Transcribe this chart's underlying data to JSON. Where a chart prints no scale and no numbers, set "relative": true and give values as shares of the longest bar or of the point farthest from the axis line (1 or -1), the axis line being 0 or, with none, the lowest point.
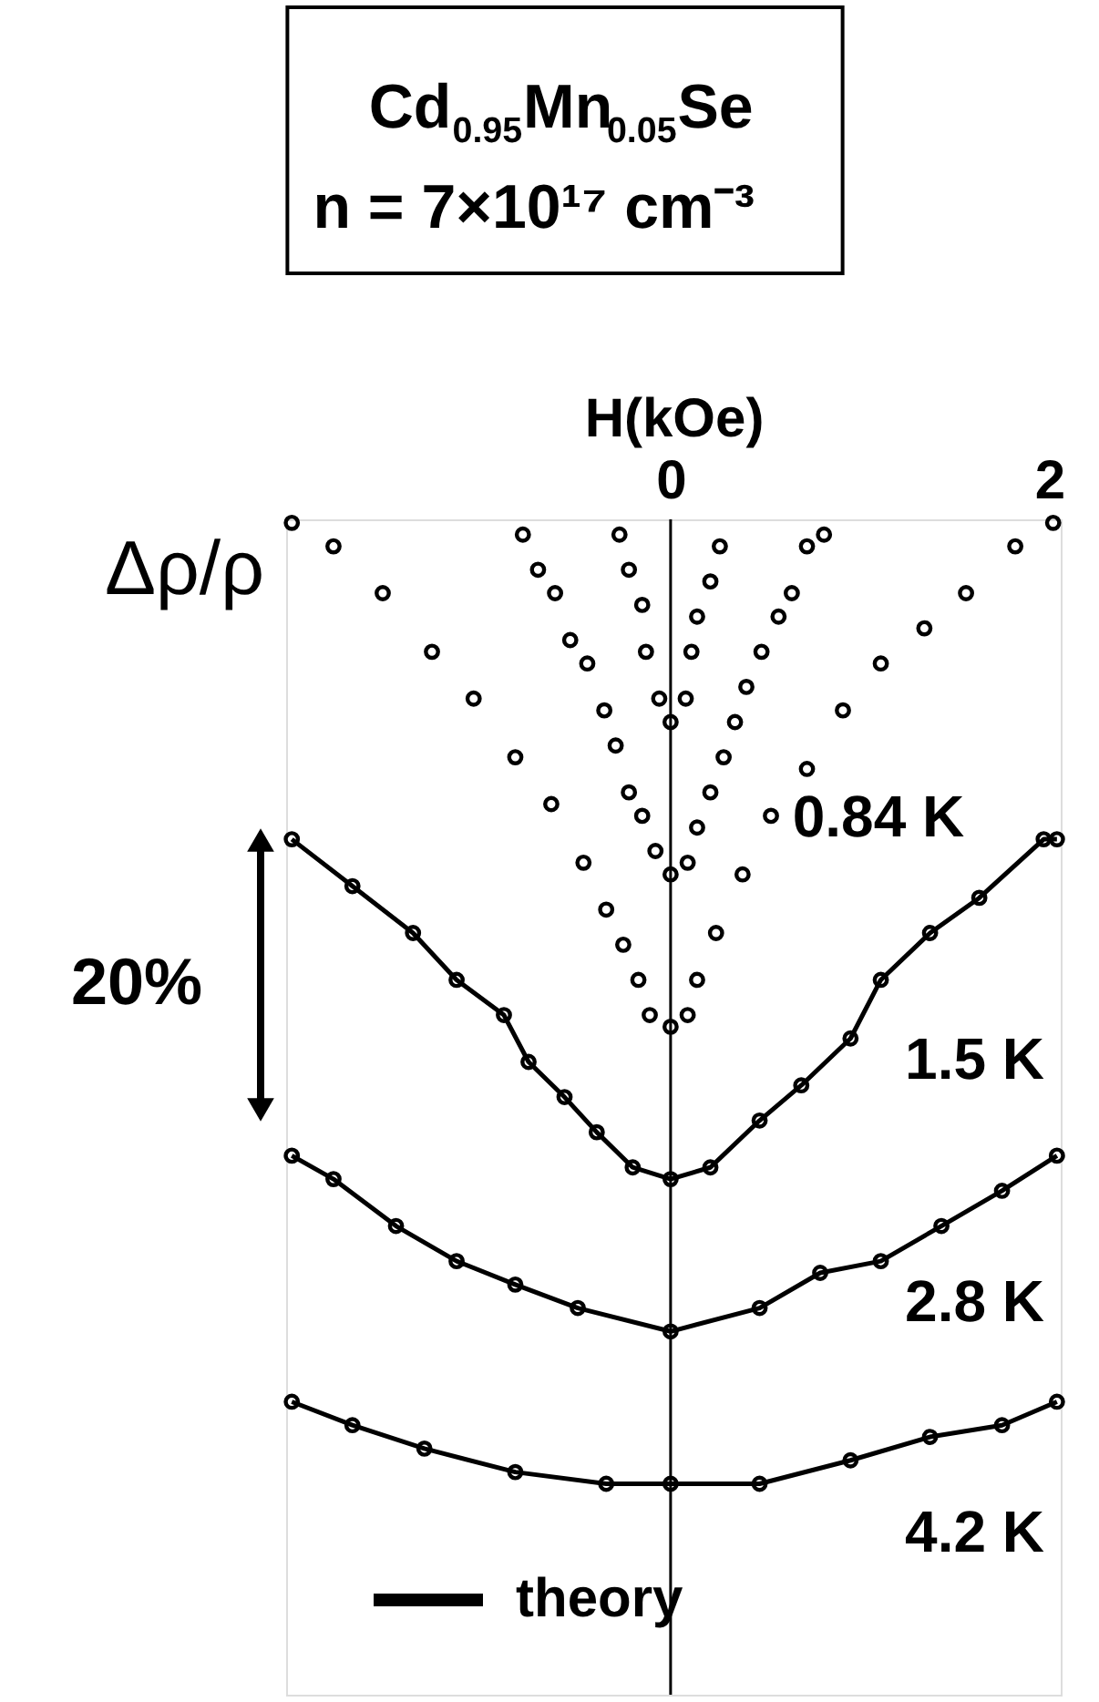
{
  "chart_data": {
    "type": "line",
    "title": "Cd$_{0.95}$Mn$_{0.05}$Se",
    "subtitle": "n = 7×10¹⁷ cm⁻³",
    "xlabel": "H(kOe)",
    "ylabel": "Δρ/ρ",
    "relative": true,
    "xlim": [
      -2.03,
      2.06
    ],
    "xticks": [
      0,
      2
    ],
    "grid": false,
    "legend": "bottom left",
    "marker": "circle",
    "annotations": [
      "20%"
    ],
    "ref_lines": [
      {
        "axis": "x",
        "value": 0,
        "color": "#000000"
      }
    ],
    "series": [
      {
        "type": "scatter",
        "color": "#000000",
        "x": [
          -0.27,
          -0.22,
          -0.15,
          -0.13,
          -0.06,
          0,
          0.08,
          0.11,
          0.14,
          0.21,
          0.26
        ],
        "values": [
          0.99,
          0.96,
          0.93,
          0.89,
          0.85,
          0.83,
          0.85,
          0.89,
          0.92,
          0.95,
          0.98
        ]
      },
      {
        "type": "scatter",
        "color": "#000000",
        "x": [
          -0.78,
          -0.7,
          -0.61,
          -0.53,
          -0.44,
          -0.35,
          -0.29,
          -0.22,
          -0.15,
          -0.08,
          0,
          0.09,
          0.14,
          0.21,
          0.28,
          0.34,
          0.4,
          0.48,
          0.57,
          0.64,
          0.72,
          0.81
        ],
        "values": [
          0.99,
          0.96,
          0.94,
          0.9,
          0.88,
          0.84,
          0.81,
          0.77,
          0.75,
          0.72,
          0.7,
          0.71,
          0.74,
          0.77,
          0.8,
          0.83,
          0.86,
          0.89,
          0.92,
          0.94,
          0.98,
          0.99
        ]
      },
      {
        "type": "scatter",
        "name": "0.84 K",
        "color": "#000000",
        "x": [
          -2.0,
          -1.78,
          -1.52,
          -1.26,
          -1.04,
          -0.82,
          -0.63,
          -0.46,
          -0.34,
          -0.25,
          -0.17,
          -0.11,
          0,
          0.09,
          0.14,
          0.24,
          0.38,
          0.53,
          0.72,
          0.91,
          1.11,
          1.34,
          1.56,
          1.82,
          2.02
        ],
        "values": [
          1.0,
          0.98,
          0.94,
          0.89,
          0.85,
          0.8,
          0.76,
          0.71,
          0.67,
          0.64,
          0.61,
          0.58,
          0.57,
          0.58,
          0.61,
          0.65,
          0.7,
          0.75,
          0.79,
          0.84,
          0.88,
          0.91,
          0.94,
          0.98,
          1.0
        ]
      },
      {
        "type": "scatter",
        "name": "1.5 K",
        "color": "#000000",
        "x": [
          -2.0,
          -1.68,
          -1.36,
          -1.13,
          -0.88,
          -0.75,
          -0.56,
          -0.39,
          -0.2,
          0,
          0.21,
          0.47,
          0.69,
          0.95,
          1.11,
          1.37,
          1.63,
          1.97,
          2.04
        ],
        "values": [
          0.73,
          0.69,
          0.65,
          0.61,
          0.58,
          0.54,
          0.51,
          0.48,
          0.45,
          0.44,
          0.45,
          0.49,
          0.52,
          0.56,
          0.61,
          0.65,
          0.68,
          0.73,
          0.73
        ]
      },
      {
        "type": "scatter",
        "name": "2.8 K",
        "color": "#000000",
        "x": [
          -2.0,
          -1.78,
          -1.45,
          -1.13,
          -0.82,
          -0.49,
          0,
          0.47,
          0.79,
          1.11,
          1.43,
          1.75,
          2.04
        ],
        "values": [
          0.46,
          0.44,
          0.4,
          0.37,
          0.35,
          0.33,
          0.31,
          0.33,
          0.36,
          0.37,
          0.4,
          0.43,
          0.46
        ]
      },
      {
        "type": "scatter",
        "name": "4.2 K",
        "color": "#000000",
        "x": [
          -2.0,
          -1.68,
          -1.3,
          -0.82,
          -0.34,
          0,
          0.47,
          0.95,
          1.37,
          1.75,
          2.04
        ],
        "values": [
          0.25,
          0.23,
          0.21,
          0.19,
          0.18,
          0.18,
          0.18,
          0.2,
          0.22,
          0.23,
          0.25
        ]
      },
      {
        "name": "theory",
        "color": "#000000",
        "line_style": "solid",
        "marker": "none",
        "x": [
          -2.0,
          -1.68,
          -1.36,
          -1.13,
          -0.88,
          -0.75,
          -0.56,
          -0.39,
          -0.2,
          0,
          0.21,
          0.47,
          0.69,
          0.95,
          1.11,
          1.37,
          1.63,
          1.97,
          2.04
        ],
        "values": [
          0.73,
          0.69,
          0.65,
          0.61,
          0.58,
          0.54,
          0.51,
          0.48,
          0.45,
          0.44,
          0.45,
          0.49,
          0.52,
          0.56,
          0.61,
          0.65,
          0.68,
          0.73,
          0.73
        ]
      },
      {
        "color": "#000000",
        "line_style": "solid",
        "marker": "none",
        "x": [
          -2.0,
          -1.78,
          -1.45,
          -1.13,
          -0.82,
          -0.49,
          0,
          0.47,
          0.79,
          1.11,
          1.43,
          1.75,
          2.04
        ],
        "values": [
          0.46,
          0.44,
          0.4,
          0.37,
          0.35,
          0.33,
          0.31,
          0.33,
          0.36,
          0.37,
          0.4,
          0.43,
          0.46
        ]
      },
      {
        "color": "#000000",
        "line_style": "solid",
        "marker": "none",
        "x": [
          -2.0,
          -1.68,
          -1.3,
          -0.82,
          -0.34,
          0,
          0.47,
          0.95,
          1.37,
          1.75,
          2.04
        ],
        "values": [
          0.25,
          0.23,
          0.21,
          0.19,
          0.18,
          0.18,
          0.18,
          0.2,
          0.22,
          0.23,
          0.25
        ]
      }
    ]
  }
}
